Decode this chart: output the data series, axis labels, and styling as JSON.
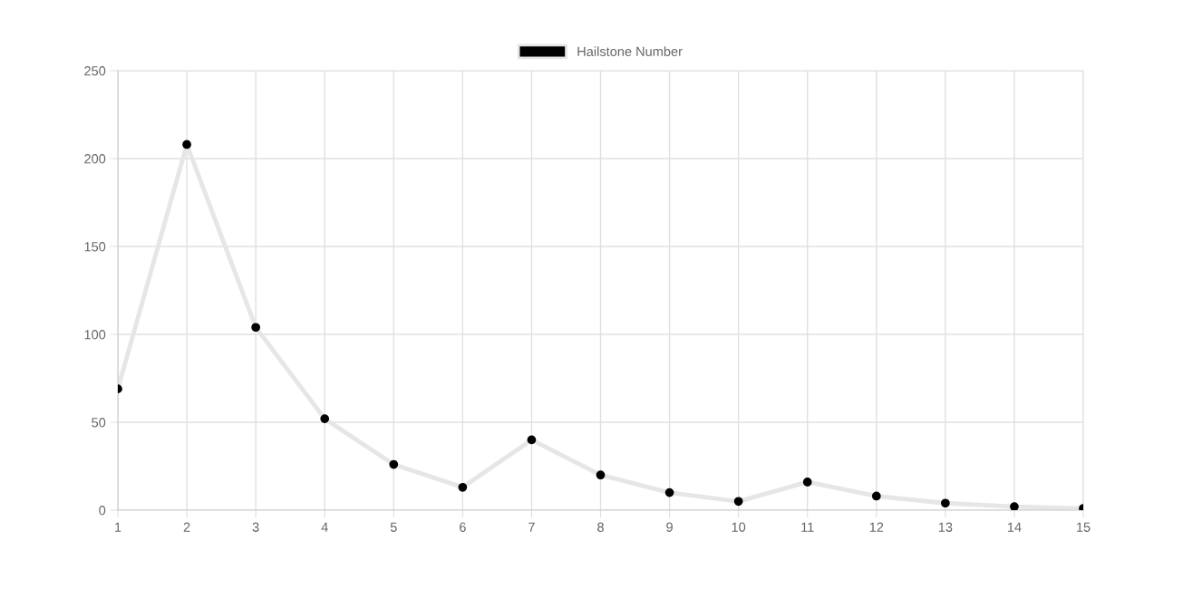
{
  "chart_data": {
    "type": "line",
    "categories": [
      "1",
      "2",
      "3",
      "4",
      "5",
      "6",
      "7",
      "8",
      "9",
      "10",
      "11",
      "12",
      "13",
      "14",
      "15"
    ],
    "series": [
      {
        "name": "Hailstone Number",
        "color": "#000000",
        "values": [
          69,
          208,
          104,
          52,
          26,
          13,
          40,
          20,
          10,
          5,
          16,
          8,
          4,
          2,
          1
        ]
      }
    ],
    "ylim": [
      0,
      250
    ],
    "yticks": [
      0,
      50,
      100,
      150,
      200,
      250
    ],
    "grid": true,
    "legend": "top",
    "marker": "circle",
    "line_style": "solid"
  }
}
